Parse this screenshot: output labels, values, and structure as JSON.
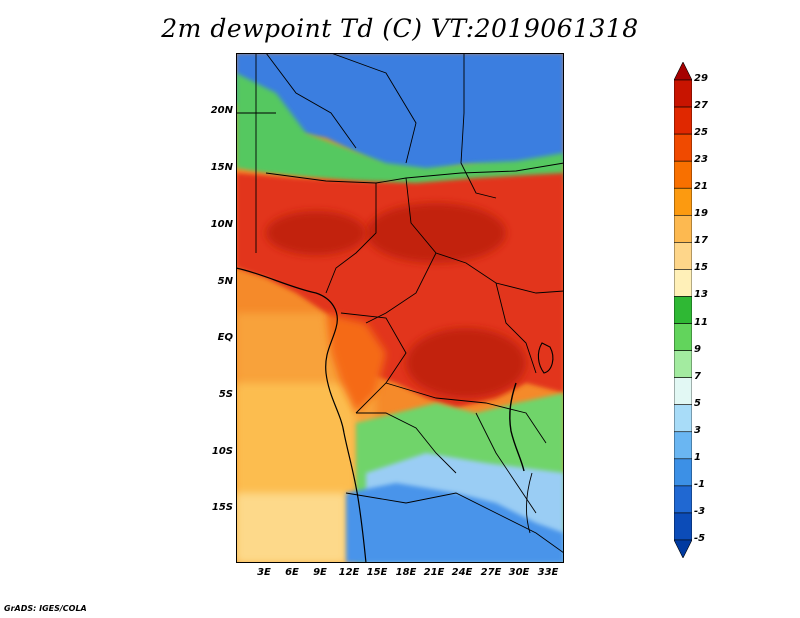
{
  "title": "2m dewpoint Td (C) VT:2019061318",
  "credit": "GrADS: IGES/COLA",
  "lat_labels": [
    "20N",
    "15N",
    "10N",
    "5N",
    "EQ",
    "5S",
    "10S",
    "15S"
  ],
  "lon_labels": [
    "3E",
    "6E",
    "9E",
    "12E",
    "15E",
    "18E",
    "21E",
    "24E",
    "27E",
    "30E",
    "33E"
  ],
  "colorbar": {
    "labels": [
      "29",
      "27",
      "25",
      "23",
      "21",
      "19",
      "17",
      "15",
      "13",
      "11",
      "9",
      "7",
      "5",
      "3",
      "1",
      "-1",
      "-3",
      "-5"
    ],
    "colors": [
      "#a50000",
      "#c81400",
      "#e02800",
      "#f04a00",
      "#f87000",
      "#fc9a10",
      "#fdb950",
      "#fed68a",
      "#fff0b8",
      "#2fb834",
      "#62d45c",
      "#a3eba0",
      "#e2f8f4",
      "#a8dcf8",
      "#6ab6f2",
      "#3c90e6",
      "#2068d2",
      "#0c4cb8",
      "#003aa0"
    ]
  },
  "fields": {
    "ocean_colors": [
      "#fdd98a",
      "#fcbd50",
      "#f8a23a",
      "#f58a2a"
    ],
    "north_blue": "#3a7ee0",
    "sahel_green": "#55c860",
    "humid_red": "#e2361a",
    "deep_red": "#c22010",
    "orange": "#f56a18",
    "south_blue": "#4a94ea",
    "south_lightblue": "#9acdf4",
    "south_green": "#6fd46a"
  }
}
